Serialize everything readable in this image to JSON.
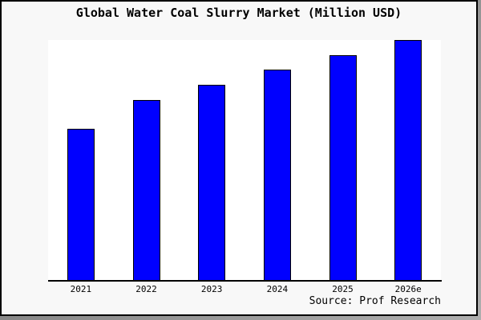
{
  "title": "Global Water Coal Slurry Market (Million USD)",
  "source_note": "Source: Prof Research",
  "colors": {
    "bar_fill": "#0000ff",
    "bar_border": "#000000",
    "plot_bg": "#ffffff",
    "canvas_bg": "#f8f8f8",
    "frame_border": "#000000",
    "axis": "#000000",
    "text": "#000000",
    "shadow": "#8a8a8a"
  },
  "chart_data": {
    "type": "bar",
    "title": "Global Water Coal Slurry Market (Million USD)",
    "categories": [
      "2021",
      "2022",
      "2023",
      "2024",
      "2025",
      "2026e"
    ],
    "values": [
      63,
      75,
      81.3,
      87.7,
      93.7,
      100
    ],
    "xlabel": "",
    "ylabel": "",
    "ylim": [
      0,
      100
    ],
    "y_axis_shown": false,
    "grid": false,
    "legend": false,
    "bar_color": "#0000ff",
    "bar_edge_color": "#000000",
    "source": "Source: Prof Research",
    "note": "No y-axis labels are shown in the image; values are relative bar heights scaled so the tallest bar (2026e) = 100."
  }
}
